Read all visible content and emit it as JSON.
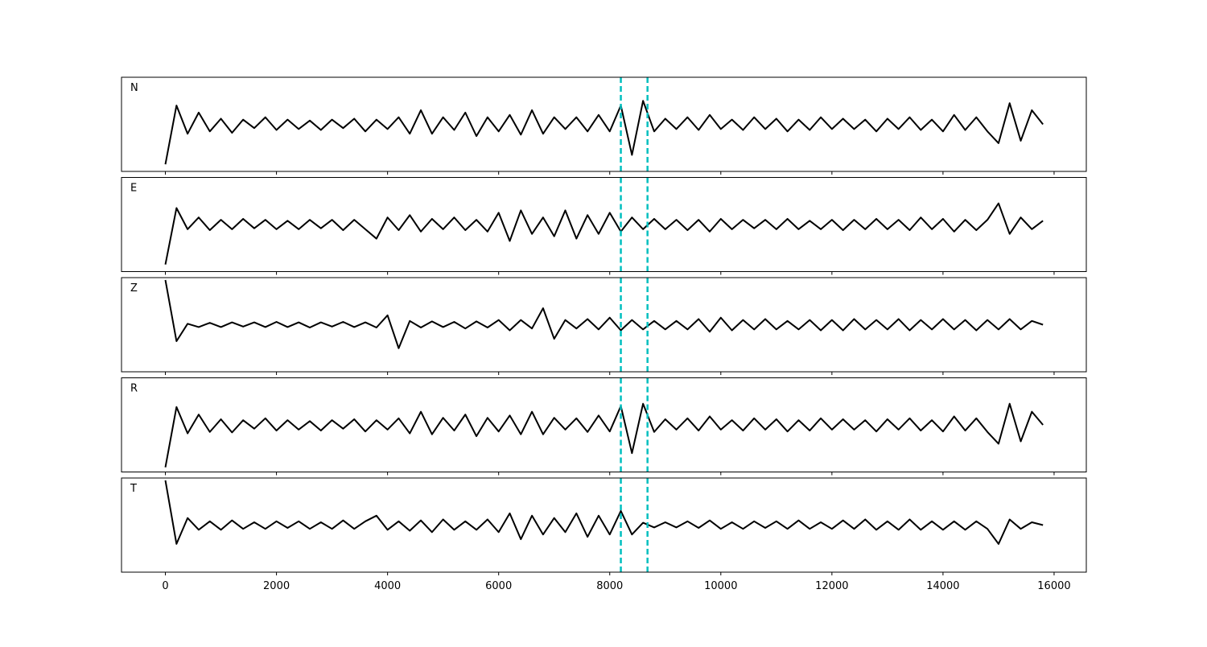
{
  "chart_data": {
    "type": "line",
    "layout": "stacked",
    "x": [
      0,
      200,
      400,
      600,
      800,
      1000,
      1200,
      1400,
      1600,
      1800,
      2000,
      2200,
      2400,
      2600,
      2800,
      3000,
      3200,
      3400,
      3600,
      3800,
      4000,
      4200,
      4400,
      4600,
      4800,
      5000,
      5200,
      5400,
      5600,
      5800,
      6000,
      6200,
      6400,
      6600,
      6800,
      7000,
      7200,
      7400,
      7600,
      7800,
      8000,
      8200,
      8400,
      8600,
      8800,
      9000,
      9200,
      9400,
      9600,
      9800,
      10000,
      10200,
      10400,
      10600,
      10800,
      11000,
      11200,
      11400,
      11600,
      11800,
      12000,
      12200,
      12400,
      12600,
      12800,
      13000,
      13200,
      13400,
      13600,
      13800,
      14000,
      14200,
      14400,
      14600,
      14800,
      15000,
      15200,
      15400,
      15600,
      15800
    ],
    "series": [
      {
        "name": "N",
        "color": "#000000",
        "values": [
          -0.85,
          0.4,
          -0.2,
          0.25,
          -0.15,
          0.12,
          -0.18,
          0.1,
          -0.08,
          0.15,
          -0.12,
          0.1,
          -0.1,
          0.08,
          -0.12,
          0.1,
          -0.08,
          0.12,
          -0.15,
          0.1,
          -0.1,
          0.15,
          -0.2,
          0.3,
          -0.2,
          0.15,
          -0.12,
          0.25,
          -0.25,
          0.15,
          -0.15,
          0.2,
          -0.22,
          0.3,
          -0.2,
          0.15,
          -0.1,
          0.15,
          -0.15,
          0.2,
          -0.15,
          0.4,
          -0.65,
          0.5,
          -0.15,
          0.12,
          -0.1,
          0.15,
          -0.12,
          0.2,
          -0.1,
          0.1,
          -0.12,
          0.15,
          -0.1,
          0.12,
          -0.15,
          0.1,
          -0.12,
          0.15,
          -0.1,
          0.12,
          -0.1,
          0.1,
          -0.15,
          0.12,
          -0.1,
          0.15,
          -0.12,
          0.1,
          -0.15,
          0.2,
          -0.12,
          0.15,
          -0.15,
          -0.4,
          0.45,
          -0.35,
          0.3,
          0.0
        ]
      },
      {
        "name": "E",
        "color": "#000000",
        "values": [
          -0.85,
          0.35,
          -0.1,
          0.15,
          -0.12,
          0.1,
          -0.1,
          0.12,
          -0.08,
          0.1,
          -0.1,
          0.08,
          -0.1,
          0.1,
          -0.08,
          0.1,
          -0.12,
          0.1,
          -0.1,
          -0.3,
          0.15,
          -0.12,
          0.2,
          -0.15,
          0.12,
          -0.1,
          0.15,
          -0.12,
          0.1,
          -0.15,
          0.25,
          -0.35,
          0.3,
          -0.2,
          0.15,
          -0.25,
          0.3,
          -0.3,
          0.2,
          -0.2,
          0.25,
          -0.15,
          0.15,
          -0.1,
          0.12,
          -0.1,
          0.1,
          -0.12,
          0.1,
          -0.15,
          0.12,
          -0.1,
          0.1,
          -0.08,
          0.1,
          -0.1,
          0.12,
          -0.1,
          0.08,
          -0.1,
          0.1,
          -0.12,
          0.1,
          -0.1,
          0.12,
          -0.1,
          0.1,
          -0.12,
          0.15,
          -0.1,
          0.12,
          -0.15,
          0.1,
          -0.12,
          0.1,
          0.45,
          -0.2,
          0.15,
          -0.1,
          0.08
        ]
      },
      {
        "name": "Z",
        "color": "#000000",
        "values": [
          0.95,
          -0.35,
          0.02,
          -0.05,
          0.04,
          -0.05,
          0.05,
          -0.04,
          0.05,
          -0.05,
          0.06,
          -0.05,
          0.05,
          -0.06,
          0.05,
          -0.04,
          0.06,
          -0.05,
          0.05,
          -0.06,
          0.2,
          -0.5,
          0.08,
          -0.06,
          0.07,
          -0.05,
          0.06,
          -0.08,
          0.07,
          -0.06,
          0.1,
          -0.12,
          0.1,
          -0.08,
          0.35,
          -0.3,
          0.1,
          -0.08,
          0.12,
          -0.1,
          0.15,
          -0.12,
          0.1,
          -0.1,
          0.08,
          -0.1,
          0.08,
          -0.1,
          0.12,
          -0.15,
          0.15,
          -0.12,
          0.1,
          -0.1,
          0.12,
          -0.1,
          0.08,
          -0.1,
          0.1,
          -0.12,
          0.1,
          -0.12,
          0.12,
          -0.1,
          0.1,
          -0.1,
          0.12,
          -0.12,
          0.1,
          -0.1,
          0.12,
          -0.1,
          0.1,
          -0.12,
          0.1,
          -0.1,
          0.12,
          -0.1,
          0.08,
          0.0
        ]
      },
      {
        "name": "R",
        "color": "#000000",
        "values": [
          -0.9,
          0.38,
          -0.18,
          0.22,
          -0.15,
          0.12,
          -0.16,
          0.1,
          -0.08,
          0.14,
          -0.12,
          0.1,
          -0.1,
          0.08,
          -0.12,
          0.1,
          -0.08,
          0.12,
          -0.14,
          0.1,
          -0.1,
          0.14,
          -0.18,
          0.28,
          -0.2,
          0.15,
          -0.12,
          0.22,
          -0.24,
          0.15,
          -0.14,
          0.2,
          -0.2,
          0.28,
          -0.2,
          0.15,
          -0.1,
          0.14,
          -0.15,
          0.2,
          -0.14,
          0.4,
          -0.6,
          0.45,
          -0.15,
          0.12,
          -0.1,
          0.14,
          -0.12,
          0.18,
          -0.1,
          0.1,
          -0.12,
          0.14,
          -0.1,
          0.12,
          -0.14,
          0.1,
          -0.12,
          0.14,
          -0.1,
          0.12,
          -0.1,
          0.1,
          -0.14,
          0.12,
          -0.1,
          0.14,
          -0.12,
          0.1,
          -0.14,
          0.18,
          -0.12,
          0.14,
          -0.15,
          -0.4,
          0.45,
          -0.35,
          0.28,
          0.0
        ]
      },
      {
        "name": "T",
        "color": "#000000",
        "values": [
          0.95,
          -0.4,
          0.15,
          -0.1,
          0.08,
          -0.1,
          0.1,
          -0.08,
          0.06,
          -0.08,
          0.08,
          -0.06,
          0.08,
          -0.08,
          0.06,
          -0.08,
          0.1,
          -0.08,
          0.08,
          0.2,
          -0.1,
          0.08,
          -0.12,
          0.1,
          -0.15,
          0.12,
          -0.1,
          0.08,
          -0.1,
          0.12,
          -0.15,
          0.25,
          -0.3,
          0.2,
          -0.2,
          0.15,
          -0.15,
          0.25,
          -0.25,
          0.2,
          -0.2,
          0.3,
          -0.2,
          0.05,
          -0.05,
          0.06,
          -0.05,
          0.08,
          -0.06,
          0.1,
          -0.08,
          0.06,
          -0.08,
          0.08,
          -0.06,
          0.08,
          -0.08,
          0.1,
          -0.08,
          0.06,
          -0.08,
          0.1,
          -0.08,
          0.12,
          -0.1,
          0.08,
          -0.1,
          0.12,
          -0.1,
          0.08,
          -0.1,
          0.08,
          -0.1,
          0.08,
          -0.08,
          -0.4,
          0.12,
          -0.08,
          0.06,
          0.0
        ]
      }
    ],
    "xlim": [
      -790,
      16580
    ],
    "xticks": [
      0,
      2000,
      4000,
      6000,
      8000,
      10000,
      12000,
      14000,
      16000
    ],
    "ylim": [
      -1,
      1
    ],
    "vlines": [
      8200,
      8680
    ],
    "vline_color": "#00bfbf"
  }
}
